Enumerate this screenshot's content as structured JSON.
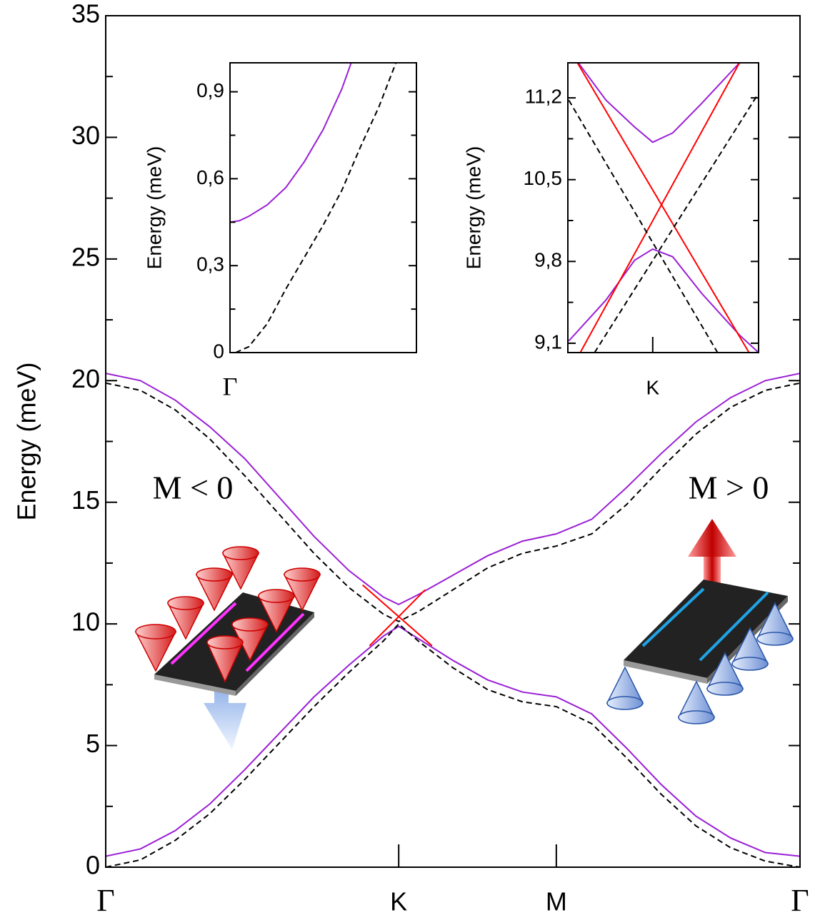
{
  "chart_data": [
    {
      "type": "line",
      "ylabel": "Energy (meV)",
      "xlim": [
        0,
        1
      ],
      "ylim": [
        0,
        35
      ],
      "xticks": [
        {
          "value": 0,
          "label": "Γ"
        },
        {
          "value": 0.422,
          "label": "K"
        },
        {
          "value": 0.649,
          "label": "M"
        },
        {
          "value": 1,
          "label": "Γ"
        }
      ],
      "yticks": [
        0,
        5,
        10,
        15,
        20,
        25,
        30,
        35
      ],
      "yminor": [
        2.5,
        7.5,
        12.5,
        17.5,
        22.5,
        27.5,
        32.5
      ],
      "annotations": [
        "M < 0",
        "M > 0"
      ],
      "series": [
        {
          "color": "#9b1fd6",
          "dashed": false,
          "x": [
            0,
            0.05,
            0.1,
            0.15,
            0.2,
            0.25,
            0.3,
            0.35,
            0.4,
            0.422,
            0.45,
            0.5,
            0.55,
            0.6,
            0.649,
            0.7,
            0.75,
            0.8,
            0.85,
            0.9,
            0.95,
            1
          ],
          "values": [
            20.3,
            20.0,
            19.2,
            18.1,
            16.8,
            15.2,
            13.6,
            12.2,
            11.1,
            10.8,
            11.2,
            12.0,
            12.8,
            13.4,
            13.7,
            14.3,
            15.6,
            17.0,
            18.3,
            19.3,
            20.0,
            20.3
          ]
        },
        {
          "color": "#000000",
          "dashed": true,
          "x": [
            0,
            0.05,
            0.1,
            0.15,
            0.2,
            0.25,
            0.3,
            0.35,
            0.4,
            0.422,
            0.45,
            0.5,
            0.55,
            0.6,
            0.649,
            0.7,
            0.75,
            0.8,
            0.85,
            0.9,
            0.95,
            1
          ],
          "values": [
            19.9,
            19.6,
            18.8,
            17.6,
            16.1,
            14.5,
            12.9,
            11.5,
            10.4,
            10.1,
            10.5,
            11.4,
            12.3,
            12.9,
            13.2,
            13.7,
            14.9,
            16.4,
            17.8,
            18.9,
            19.6,
            19.9
          ]
        },
        {
          "color": "#9b1fd6",
          "dashed": false,
          "x": [
            0,
            0.05,
            0.1,
            0.15,
            0.2,
            0.25,
            0.3,
            0.35,
            0.4,
            0.422,
            0.45,
            0.5,
            0.55,
            0.6,
            0.649,
            0.7,
            0.75,
            0.8,
            0.85,
            0.9,
            0.95,
            1
          ],
          "values": [
            0.45,
            0.75,
            1.5,
            2.6,
            4.0,
            5.5,
            7.0,
            8.3,
            9.5,
            9.9,
            9.4,
            8.5,
            7.7,
            7.2,
            7.0,
            6.3,
            4.9,
            3.4,
            2.1,
            1.2,
            0.6,
            0.45
          ]
        },
        {
          "color": "#000000",
          "dashed": true,
          "x": [
            0,
            0.05,
            0.1,
            0.15,
            0.2,
            0.25,
            0.3,
            0.35,
            0.4,
            0.422,
            0.45,
            0.5,
            0.55,
            0.6,
            0.649,
            0.7,
            0.75,
            0.8,
            0.85,
            0.9,
            0.95,
            1
          ],
          "values": [
            0,
            0.3,
            1.1,
            2.2,
            3.6,
            5.1,
            6.6,
            8.0,
            9.3,
            10.0,
            9.3,
            8.2,
            7.3,
            6.8,
            6.6,
            5.9,
            4.5,
            3.0,
            1.7,
            0.8,
            0.25,
            0
          ]
        },
        {
          "color": "#ff0000",
          "dashed": false,
          "x": [
            0.37,
            0.422,
            0.47
          ],
          "values": [
            11.6,
            10.3,
            9.1
          ]
        },
        {
          "color": "#ff0000",
          "dashed": false,
          "x": [
            0.38,
            0.422,
            0.46
          ],
          "values": [
            9.1,
            10.3,
            11.4
          ]
        }
      ]
    },
    {
      "type": "line",
      "ylabel": "Energy (meV)",
      "xlim": [
        0,
        1
      ],
      "ylim": [
        0,
        1.0
      ],
      "xticks": [
        {
          "value": 0,
          "label": "Γ"
        }
      ],
      "yticks": [
        0,
        {
          "value": 0.3,
          "label": "0,3"
        },
        {
          "value": 0.6,
          "label": "0,6"
        },
        {
          "value": 0.9,
          "label": "0,9"
        }
      ],
      "yminor": [
        0.15,
        0.45,
        0.75
      ],
      "series": [
        {
          "color": "#9b1fd6",
          "dashed": false,
          "x": [
            0,
            0.05,
            0.1,
            0.2,
            0.3,
            0.4,
            0.5,
            0.6,
            0.65
          ],
          "values": [
            0.45,
            0.455,
            0.47,
            0.51,
            0.57,
            0.66,
            0.77,
            0.91,
            1.0
          ]
        },
        {
          "color": "#000000",
          "dashed": true,
          "x": [
            0.03,
            0.1,
            0.2,
            0.3,
            0.4,
            0.5,
            0.6,
            0.7,
            0.8,
            0.89
          ],
          "values": [
            0,
            0.02,
            0.1,
            0.22,
            0.33,
            0.44,
            0.56,
            0.71,
            0.85,
            1.0
          ]
        }
      ]
    },
    {
      "type": "line",
      "ylabel": "Energy (meV)",
      "xlim": [
        -1,
        1
      ],
      "ylim": [
        9.02,
        11.5
      ],
      "xticks": [
        {
          "value": -0.11,
          "label": "K"
        }
      ],
      "yticks": [
        {
          "value": 9.1,
          "label": "9,1"
        },
        {
          "value": 9.8,
          "label": "9,8"
        },
        {
          "value": 10.5,
          "label": "10,5"
        },
        {
          "value": 11.2,
          "label": "11,2"
        }
      ],
      "yminor": [
        9.45,
        10.15,
        10.85
      ],
      "series": [
        {
          "color": "#9b1fd6",
          "dashed": false,
          "x": [
            -0.89,
            -0.6,
            -0.3,
            -0.11,
            0.1,
            0.4,
            0.8
          ],
          "values": [
            11.5,
            11.18,
            10.95,
            10.82,
            10.9,
            11.15,
            11.5
          ]
        },
        {
          "color": "#9b1fd6",
          "dashed": false,
          "x": [
            -0.99,
            -0.6,
            -0.3,
            -0.11,
            0.1,
            0.4,
            0.8,
            1.0
          ],
          "values": [
            9.12,
            9.47,
            9.81,
            9.906,
            9.84,
            9.53,
            9.17,
            9.02
          ]
        },
        {
          "color": "#ff0000",
          "dashed": false,
          "x": [
            -0.9,
            0.9
          ],
          "values": [
            11.5,
            9.02
          ]
        },
        {
          "color": "#ff0000",
          "dashed": false,
          "x": [
            -0.87,
            0.8
          ],
          "values": [
            9.02,
            11.5
          ]
        },
        {
          "color": "#000000",
          "dashed": true,
          "x": [
            -0.99,
            0.57
          ],
          "values": [
            11.18,
            9.02
          ]
        },
        {
          "color": "#000000",
          "dashed": true,
          "x": [
            -0.72,
            1.0
          ],
          "values": [
            9.02,
            11.24
          ]
        }
      ]
    }
  ]
}
